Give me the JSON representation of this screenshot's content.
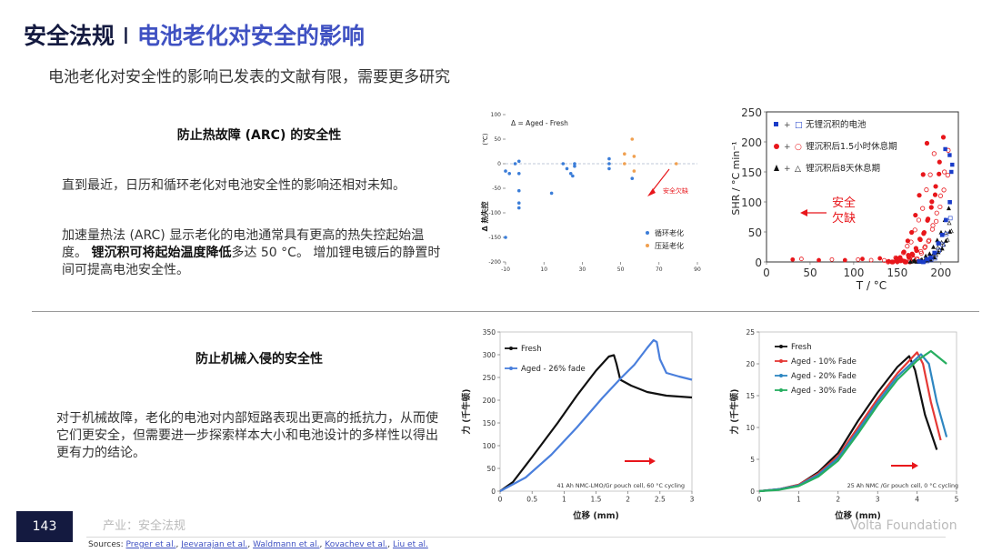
{
  "header": {
    "title_main": "安全法规",
    "title_sep": "I",
    "title_accent": "电池老化对安全的影响",
    "subtitle": "电池老化对安全性的影响已发表的文献有限，需要更多研究"
  },
  "arc_section": {
    "heading": "防止热故障 (ARC) 的安全性",
    "para1": "直到最近，日历和循环老化对电池安全性的影响还相对未知。",
    "para2_a": "加速量热法 (ARC) 显示老化的电池通常具有更高的热失控起始温度。",
    "para2_highlight": "锂沉积可将起始温度降低",
    "para2_b": "多达 50 °C。 增加锂电镀后的静置时间可提高电池安全性。"
  },
  "mech_section": {
    "heading": "防止机械入侵的安全性",
    "para1": "对于机械故障，老化的电池对内部短路表现出更高的抵抗力，从而使它们更安全，但需要进一步探索样本大小和电池设计的多样性以得出更有力的结论。"
  },
  "footer": {
    "page_number": "143",
    "breadcrumb": "产业：安全法规",
    "brand": "Volta Foundation",
    "sources_label": "Sources:",
    "sources": [
      "Preger et al.",
      "Jeevarajan et al.",
      "Waldmann et al.",
      "Kovachev et al.",
      "Liu et al."
    ]
  },
  "colors": {
    "navy": "#141a40",
    "accent_blue": "#3f51c2",
    "cycle_blue": "#3b7dd8",
    "storage_orange": "#f0a050",
    "red": "#e8161b"
  },
  "chart_data": [
    {
      "id": "delta-onset",
      "type": "scatter",
      "annotation": "Δ = Aged - Fresh",
      "ylabel": "Δ 热失控",
      "yunit": "(℃)",
      "xlim": [
        -10,
        90
      ],
      "ylim": [
        -200,
        100
      ],
      "xticks": [
        -10,
        10,
        30,
        50,
        70,
        90
      ],
      "yticks": [
        -200,
        -150,
        -100,
        -50,
        0,
        50,
        100
      ],
      "arrow_label": "安全欠缺",
      "series": [
        {
          "name": "循环老化",
          "color": "#3b7dd8",
          "points": [
            [
              -10,
              -15
            ],
            [
              -8,
              -20
            ],
            [
              -5,
              0
            ],
            [
              -3,
              -55
            ],
            [
              -3,
              -80
            ],
            [
              -3,
              -90
            ],
            [
              -3,
              -20
            ],
            [
              -3,
              5
            ],
            [
              14,
              -60
            ],
            [
              20,
              0
            ],
            [
              22,
              -10
            ],
            [
              24,
              -20
            ],
            [
              25,
              -25
            ],
            [
              26,
              -5
            ],
            [
              26,
              0
            ],
            [
              44,
              10
            ],
            [
              44,
              0
            ],
            [
              44,
              -10
            ],
            [
              56,
              -30
            ],
            [
              -10,
              -150
            ]
          ]
        },
        {
          "name": "压延老化",
          "color": "#f0a050",
          "points": [
            [
              52,
              0
            ],
            [
              52,
              20
            ],
            [
              56,
              50
            ],
            [
              57,
              15
            ],
            [
              57,
              -15
            ],
            [
              79,
              0
            ]
          ]
        }
      ]
    },
    {
      "id": "shr-curves",
      "type": "scatter",
      "xlabel": "T / °C",
      "ylabel": "SHR / °C min⁻¹",
      "xlim": [
        0,
        220
      ],
      "ylim": [
        0,
        250
      ],
      "xticks": [
        0,
        50,
        100,
        150,
        200
      ],
      "yticks": [
        0,
        50,
        100,
        150,
        200,
        250
      ],
      "arrow_label": "安全欠缺",
      "series": [
        {
          "name": "无锂沉积的电池",
          "marker": "square",
          "color": "#1a3cc8"
        },
        {
          "name": "锂沉积后1.5小时休息期",
          "marker": "circle",
          "color": "#e8161b"
        },
        {
          "name": "锂沉积后8天休息期",
          "marker": "triangle",
          "color": "#111111"
        }
      ]
    },
    {
      "id": "force-lmo",
      "type": "line",
      "xlabel": "位移 (mm)",
      "ylabel": "力 (千牛顿)",
      "xlim": [
        0,
        3
      ],
      "ylim": [
        0,
        350
      ],
      "xticks": [
        0,
        0.5,
        1,
        1.5,
        2,
        2.5,
        3
      ],
      "yticks": [
        0,
        50,
        100,
        150,
        200,
        250,
        300,
        350
      ],
      "note": "41 Ah NMC-LMO/Gr pouch cell, 60 °C cycling",
      "series": [
        {
          "name": "Fresh",
          "color": "#111111",
          "x": [
            0,
            0.2,
            0.5,
            0.9,
            1.2,
            1.5,
            1.7,
            1.78,
            1.82,
            1.88,
            2.05,
            2.3,
            2.6,
            3
          ],
          "y": [
            0,
            20,
            75,
            150,
            210,
            265,
            296,
            299,
            280,
            245,
            232,
            218,
            210,
            206
          ]
        },
        {
          "name": "Aged - 26% fade",
          "color": "#4a7fdc",
          "x": [
            0,
            0.4,
            0.8,
            1.2,
            1.6,
            1.9,
            2.1,
            2.3,
            2.4,
            2.45,
            2.5,
            2.6,
            2.8,
            3
          ],
          "y": [
            0,
            30,
            80,
            140,
            205,
            250,
            278,
            315,
            332,
            328,
            290,
            260,
            252,
            245
          ]
        }
      ]
    },
    {
      "id": "force-gr",
      "type": "line",
      "xlabel": "位移 (mm)",
      "ylabel": "力 (千牛顿)",
      "xlim": [
        0,
        5
      ],
      "ylim": [
        0,
        25
      ],
      "xticks": [
        0,
        1,
        2,
        3,
        4,
        5
      ],
      "yticks": [
        0,
        5,
        10,
        15,
        20,
        25
      ],
      "note": "25 Ah NMC /Gr pouch cell, 0 °C cycling",
      "series": [
        {
          "name": "Fresh",
          "color": "#111111",
          "x": [
            0,
            0.5,
            1,
            1.5,
            2,
            2.5,
            3,
            3.5,
            3.8,
            3.95,
            4.2,
            4.5
          ],
          "y": [
            0,
            0.3,
            1,
            3,
            6,
            11,
            15.5,
            19.5,
            21.2,
            19,
            12,
            6.5
          ]
        },
        {
          "name": "Aged - 10% Fade",
          "color": "#e53935",
          "x": [
            0,
            0.5,
            1,
            1.5,
            2,
            2.5,
            3,
            3.5,
            4,
            4.15,
            4.35,
            4.6
          ],
          "y": [
            0,
            0.3,
            1,
            2.8,
            5.5,
            10,
            14.5,
            18.5,
            21.8,
            20,
            14,
            8
          ]
        },
        {
          "name": "Aged - 20% Fade",
          "color": "#2e86c1",
          "x": [
            0,
            0.5,
            1,
            1.5,
            2,
            2.5,
            3,
            3.5,
            4.1,
            4.3,
            4.5,
            4.75
          ],
          "y": [
            0,
            0.3,
            0.9,
            2.6,
            5.2,
            9.5,
            14,
            18,
            21.5,
            20,
            14,
            8.5
          ]
        },
        {
          "name": "Aged - 30% Fade",
          "color": "#27ae60",
          "x": [
            0,
            0.5,
            1,
            1.5,
            2,
            2.5,
            3,
            3.5,
            4,
            4.35,
            4.55,
            4.75
          ],
          "y": [
            0,
            0.2,
            0.8,
            2.3,
            4.8,
            9,
            13.5,
            17.5,
            20.5,
            22,
            21,
            20
          ]
        }
      ]
    }
  ]
}
